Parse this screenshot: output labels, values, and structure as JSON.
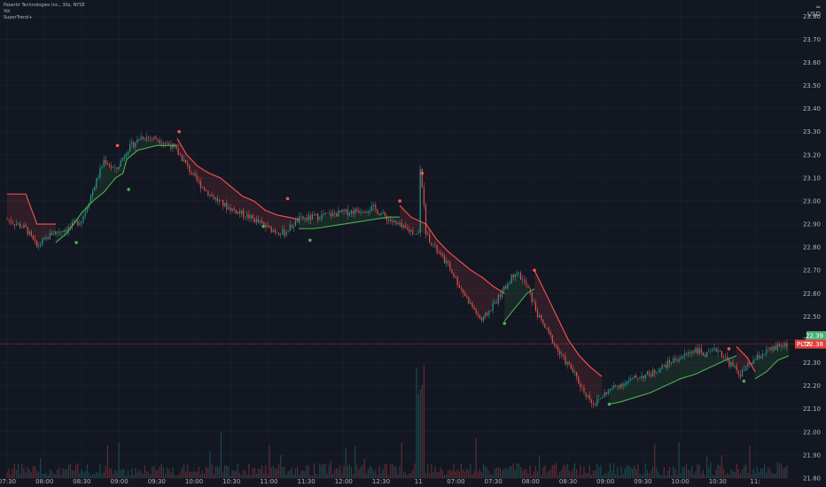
{
  "legend": {
    "symbol_line": "Palantir Technologies Inc., 30s, NYSE",
    "indicator_1": "Vol",
    "indicator_2": "SuperTrend+"
  },
  "currency_icon": "≈",
  "currency": "USD",
  "colors": {
    "background": "#131722",
    "grid": "#1f2330",
    "up": "#26a69a",
    "down": "#ef5350",
    "supertrend_up": "#4caf50",
    "supertrend_down": "#ff5252",
    "price_label_bg": "#4caf79",
    "symbol_label_bg": "#e0413c"
  },
  "chart_data": {
    "type": "line",
    "title": "",
    "symbol": "Palantir Technologies Inc., 30s, NYSE",
    "ylim": [
      21.8,
      23.87
    ],
    "y_ticks": [
      21.8,
      21.9,
      22.0,
      22.1,
      22.2,
      22.3,
      22.4,
      22.5,
      22.6,
      22.7,
      22.8,
      22.9,
      23.0,
      23.1,
      23.2,
      23.3,
      23.4,
      23.5,
      23.6,
      23.7,
      23.8
    ],
    "y_tick_labels": [
      "21.80",
      "21.90",
      "22.00",
      "22.10",
      "22.20",
      "22.30",
      "22.40",
      "22.50",
      "22.60",
      "22.70",
      "22.80",
      "22.90",
      "23.00",
      "23.10",
      "23.20",
      "23.30",
      "23.40",
      "23.50",
      "23.60",
      "23.70",
      "23.80"
    ],
    "x_tick_labels": [
      "07:30",
      "08:00",
      "08:30",
      "09:00",
      "09:30",
      "10:00",
      "10:30",
      "11:00",
      "11:30",
      "12:00",
      "12:30",
      "11",
      "07:00",
      "07:30",
      "08:00",
      "08:30",
      "09:00",
      "09:30",
      "10:00",
      "10:30",
      "11:"
    ],
    "x_tick_index": [
      0,
      1,
      2,
      3,
      4,
      5,
      6,
      7,
      8,
      9,
      10,
      11,
      12,
      13,
      14,
      15,
      16,
      17,
      18,
      19,
      20
    ],
    "price_path": {
      "x": [
        0,
        0.5,
        0.8,
        1.2,
        1.6,
        2.0,
        2.3,
        2.6,
        2.9,
        3.2,
        3.6,
        4.0,
        4.4,
        4.7,
        5.0,
        5.4,
        5.8,
        6.2,
        6.6,
        7.0,
        7.4,
        7.8,
        8.2,
        8.6,
        9.0,
        9.4,
        9.8,
        10.2,
        10.6,
        11.0,
        11.05,
        11.2,
        11.5,
        11.8,
        12.1,
        12.4,
        12.7,
        13.0,
        13.3,
        13.6,
        13.9,
        14.2,
        14.5,
        14.8,
        15.1,
        15.4,
        15.7,
        16.0,
        16.3,
        16.6,
        16.9,
        17.2,
        17.5,
        17.8,
        18.1,
        18.4,
        18.7,
        19.0,
        19.3,
        19.6,
        19.9,
        20.2,
        20.5,
        20.8
      ],
      "y": [
        22.92,
        22.88,
        22.8,
        22.86,
        22.88,
        22.92,
        23.05,
        23.18,
        23.13,
        23.22,
        23.28,
        23.27,
        23.24,
        23.18,
        23.1,
        23.03,
        22.98,
        22.95,
        22.92,
        22.88,
        22.86,
        22.92,
        22.93,
        22.94,
        22.95,
        22.96,
        22.97,
        22.92,
        22.88,
        22.86,
        23.17,
        22.86,
        22.78,
        22.72,
        22.63,
        22.55,
        22.48,
        22.55,
        22.62,
        22.7,
        22.63,
        22.5,
        22.42,
        22.33,
        22.27,
        22.18,
        22.12,
        22.17,
        22.2,
        22.22,
        22.24,
        22.25,
        22.28,
        22.31,
        22.33,
        22.36,
        22.33,
        22.36,
        22.3,
        22.25,
        22.3,
        22.34,
        22.36,
        22.38
      ]
    },
    "supertrend_segments": [
      {
        "trend": "down",
        "x": [
          0,
          0.5,
          0.8,
          1.3
        ],
        "y": [
          23.03,
          23.03,
          22.9,
          22.9
        ]
      },
      {
        "trend": "up",
        "x": [
          1.3,
          1.6,
          2.0,
          2.3,
          2.6,
          2.9,
          3.1,
          3.2,
          3.5,
          4.0,
          4.4,
          4.55
        ],
        "y": [
          22.82,
          22.86,
          22.95,
          23.0,
          23.04,
          23.1,
          23.12,
          23.18,
          23.22,
          23.24,
          23.24,
          23.24
        ]
      },
      {
        "trend": "down",
        "x": [
          4.55,
          4.8,
          5.1,
          5.4,
          5.7,
          6.0,
          6.3,
          6.6,
          6.9,
          7.2,
          7.5,
          7.8
        ],
        "y": [
          23.27,
          23.2,
          23.15,
          23.12,
          23.1,
          23.06,
          23.02,
          23.0,
          22.96,
          22.94,
          22.93,
          22.92
        ]
      },
      {
        "trend": "up",
        "x": [
          7.8,
          8.2,
          8.6,
          9.0,
          9.4,
          9.8,
          10.2,
          10.5
        ],
        "y": [
          22.88,
          22.88,
          22.89,
          22.9,
          22.91,
          22.92,
          22.93,
          22.93
        ]
      },
      {
        "trend": "down",
        "x": [
          10.5,
          10.8,
          11.2,
          11.5,
          11.8,
          12.1,
          12.4,
          12.7,
          13.0,
          13.3
        ],
        "y": [
          22.98,
          22.93,
          22.9,
          22.83,
          22.78,
          22.74,
          22.7,
          22.67,
          22.63,
          22.6
        ]
      },
      {
        "trend": "up",
        "x": [
          13.3,
          13.6,
          13.9,
          14.1
        ],
        "y": [
          22.48,
          22.54,
          22.6,
          22.62
        ]
      },
      {
        "trend": "down",
        "x": [
          14.1,
          14.4,
          14.7,
          15.0,
          15.3,
          15.6,
          15.9
        ],
        "y": [
          22.7,
          22.6,
          22.5,
          22.4,
          22.33,
          22.28,
          22.24
        ]
      },
      {
        "trend": "up",
        "x": [
          16.1,
          16.4,
          16.8,
          17.2,
          17.6,
          18.0,
          18.4,
          18.8,
          19.2,
          19.5
        ],
        "y": [
          22.12,
          22.13,
          22.15,
          22.17,
          22.2,
          22.23,
          22.25,
          22.28,
          22.31,
          22.33
        ]
      },
      {
        "trend": "down",
        "x": [
          19.5,
          19.8,
          20.0
        ],
        "y": [
          22.37,
          22.32,
          22.26
        ]
      },
      {
        "trend": "up",
        "x": [
          20.0,
          20.3,
          20.6,
          20.9
        ],
        "y": [
          22.23,
          22.26,
          22.31,
          22.33
        ]
      }
    ],
    "signal_points": [
      {
        "type": "sell",
        "x": 2.95,
        "y": 23.24
      },
      {
        "type": "buy",
        "x": 1.85,
        "y": 22.82
      },
      {
        "type": "buy",
        "x": 3.25,
        "y": 23.05
      },
      {
        "type": "sell",
        "x": 4.6,
        "y": 23.3
      },
      {
        "type": "buy",
        "x": 6.85,
        "y": 22.89
      },
      {
        "type": "sell",
        "x": 7.5,
        "y": 23.01
      },
      {
        "type": "buy",
        "x": 8.1,
        "y": 22.83
      },
      {
        "type": "sell",
        "x": 10.5,
        "y": 23.0
      },
      {
        "type": "sell",
        "x": 11.1,
        "y": 23.12
      },
      {
        "type": "buy",
        "x": 13.3,
        "y": 22.47
      },
      {
        "type": "sell",
        "x": 14.1,
        "y": 22.7
      },
      {
        "type": "buy",
        "x": 16.1,
        "y": 22.12
      },
      {
        "type": "sell",
        "x": 19.3,
        "y": 22.36
      },
      {
        "type": "buy",
        "x": 19.7,
        "y": 22.22
      }
    ],
    "last_price": 22.38,
    "last_price_label": "22.38",
    "symbol_price_label": "PLTR",
    "highlight_price": 22.39,
    "highlight_price_label": "22.39"
  }
}
